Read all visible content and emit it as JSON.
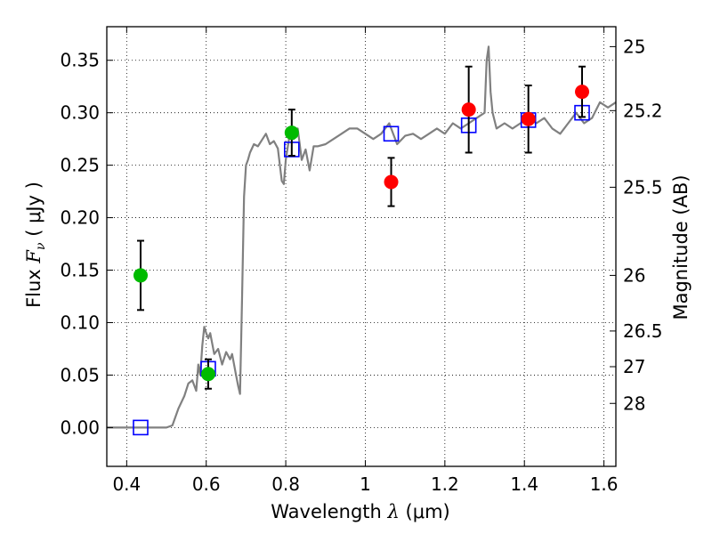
{
  "chart_data": {
    "type": "scatter",
    "xlabel": "Wavelength",
    "xlabel_math": "λ",
    "xlabel_unit": "(μm)",
    "ylabel": "Flux",
    "ylabel_math": "F",
    "ylabel_sub": "ν",
    "ylabel_unit": "( μJy )",
    "y2label": "Magnitude (AB)",
    "xlim": [
      0.35,
      1.63
    ],
    "ylim": [
      -0.037,
      0.382
    ],
    "grid": true,
    "xticks": [
      0.4,
      0.6,
      0.8,
      1.0,
      1.2,
      1.4,
      1.6
    ],
    "xtick_labels": [
      "0.4",
      "0.6",
      "0.8",
      "1",
      "1.2",
      "1.4",
      "1.6"
    ],
    "yticks": [
      0.0,
      0.05,
      0.1,
      0.15,
      0.2,
      0.25,
      0.3,
      0.35
    ],
    "ytick_labels": [
      "0.00",
      "0.05",
      "0.10",
      "0.15",
      "0.20",
      "0.25",
      "0.30",
      "0.35"
    ],
    "y2ticks": [
      {
        "label": "25",
        "flux": 0.363
      },
      {
        "label": "25.2",
        "flux": 0.302
      },
      {
        "label": "25.5",
        "flux": 0.229
      },
      {
        "label": "26",
        "flux": 0.145
      },
      {
        "label": "26.5",
        "flux": 0.092
      },
      {
        "label": "27",
        "flux": 0.058
      },
      {
        "label": "28",
        "flux": 0.023
      }
    ],
    "colors": {
      "model": "#808080",
      "model_photometry": "#0000ff",
      "green_points": "#00bb00",
      "red_points": "#ff0000",
      "errorbar": "#000000",
      "grid": "#000000"
    },
    "series": [
      {
        "style": "model_spectrum_line",
        "x": [
          0.35,
          0.45,
          0.5,
          0.515,
          0.53,
          0.545,
          0.555,
          0.565,
          0.575,
          0.58,
          0.585,
          0.59,
          0.595,
          0.6,
          0.605,
          0.61,
          0.62,
          0.63,
          0.64,
          0.65,
          0.66,
          0.665,
          0.67,
          0.675,
          0.68,
          0.685,
          0.69,
          0.695,
          0.7,
          0.705,
          0.71,
          0.72,
          0.73,
          0.74,
          0.75,
          0.76,
          0.77,
          0.78,
          0.79,
          0.795,
          0.8,
          0.81,
          0.82,
          0.83,
          0.84,
          0.85,
          0.86,
          0.87,
          0.88,
          0.9,
          0.92,
          0.94,
          0.96,
          0.98,
          1.0,
          1.02,
          1.04,
          1.06,
          1.08,
          1.1,
          1.12,
          1.14,
          1.16,
          1.18,
          1.2,
          1.22,
          1.24,
          1.26,
          1.28,
          1.3,
          1.305,
          1.31,
          1.315,
          1.32,
          1.33,
          1.35,
          1.37,
          1.39,
          1.41,
          1.43,
          1.45,
          1.47,
          1.49,
          1.51,
          1.53,
          1.55,
          1.57,
          1.59,
          1.61,
          1.63
        ],
        "y": [
          0.0,
          0.0,
          0.0,
          0.002,
          0.018,
          0.03,
          0.042,
          0.045,
          0.035,
          0.06,
          0.05,
          0.078,
          0.096,
          0.09,
          0.085,
          0.09,
          0.07,
          0.075,
          0.06,
          0.072,
          0.065,
          0.07,
          0.06,
          0.05,
          0.04,
          0.032,
          0.12,
          0.22,
          0.25,
          0.255,
          0.262,
          0.27,
          0.268,
          0.274,
          0.28,
          0.27,
          0.273,
          0.266,
          0.235,
          0.232,
          0.255,
          0.28,
          0.275,
          0.285,
          0.255,
          0.265,
          0.245,
          0.268,
          0.268,
          0.27,
          0.275,
          0.28,
          0.285,
          0.285,
          0.28,
          0.275,
          0.28,
          0.29,
          0.27,
          0.278,
          0.28,
          0.275,
          0.28,
          0.285,
          0.28,
          0.29,
          0.285,
          0.29,
          0.295,
          0.3,
          0.35,
          0.363,
          0.32,
          0.3,
          0.285,
          0.29,
          0.285,
          0.29,
          0.295,
          0.29,
          0.295,
          0.285,
          0.28,
          0.29,
          0.3,
          0.29,
          0.295,
          0.31,
          0.305,
          0.31
        ]
      },
      {
        "style": "model_photometry_squares",
        "x": [
          0.435,
          0.605,
          0.815,
          1.065,
          1.26,
          1.41,
          1.545
        ],
        "y": [
          0.0,
          0.056,
          0.265,
          0.28,
          0.288,
          0.293,
          0.3
        ]
      },
      {
        "style": "green_points_with_errorbars",
        "x": [
          0.435,
          0.605,
          0.815
        ],
        "y": [
          0.145,
          0.051,
          0.281
        ],
        "yerr": [
          0.033,
          0.014,
          0.022
        ]
      },
      {
        "style": "red_points_with_errorbars",
        "x": [
          1.065,
          1.26,
          1.41,
          1.545
        ],
        "y": [
          0.234,
          0.303,
          0.294,
          0.32
        ],
        "yerr": [
          0.023,
          0.041,
          0.032,
          0.024
        ]
      }
    ]
  }
}
